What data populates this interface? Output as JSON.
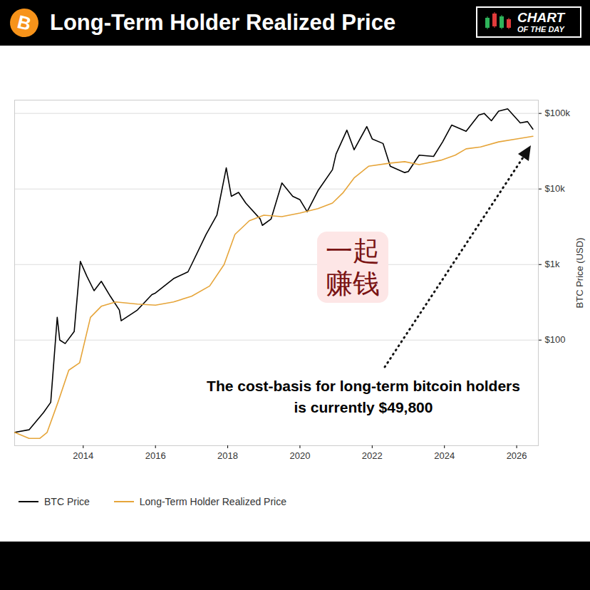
{
  "chart_data": {
    "type": "line",
    "title": "Long-Term Holder Realized Price",
    "badge": "CHART OF THE DAY",
    "icon_label": "B",
    "annotations": [
      "The cost-basis for long-term bitcoin holders is currently $49,800",
      "一起赚钱"
    ],
    "y_label": "BTC Price (USD)",
    "log": "y",
    "grid": true,
    "legend": "bottom",
    "xlim": [
      2012.1,
      2026.6
    ],
    "xticks": [
      2014,
      2016,
      2018,
      2020,
      2022,
      2024,
      2026
    ],
    "ylim": [
      4,
      150000
    ],
    "yticks": [
      {
        "value": 100,
        "label": "$100"
      },
      {
        "value": 1000,
        "label": "$1k"
      },
      {
        "value": 10000,
        "label": "$10k"
      },
      {
        "value": 100000,
        "label": "$100k"
      }
    ],
    "series": [
      {
        "name": "BTC Price",
        "color": "#000000",
        "x": [
          2012.1,
          2012.5,
          2012.9,
          2013.1,
          2013.28,
          2013.35,
          2013.5,
          2013.75,
          2013.92,
          2014.1,
          2014.3,
          2014.5,
          2014.75,
          2015.0,
          2015.05,
          2015.5,
          2015.9,
          2016.0,
          2016.5,
          2016.9,
          2017.0,
          2017.4,
          2017.7,
          2017.96,
          2018.1,
          2018.3,
          2018.5,
          2018.9,
          2018.96,
          2019.2,
          2019.5,
          2019.8,
          2020.0,
          2020.2,
          2020.5,
          2020.9,
          2021.0,
          2021.3,
          2021.5,
          2021.85,
          2022.0,
          2022.3,
          2022.5,
          2022.9,
          2023.0,
          2023.3,
          2023.7,
          2023.95,
          2024.2,
          2024.6,
          2024.95,
          2025.1,
          2025.3,
          2025.5,
          2025.75,
          2025.95,
          2026.1,
          2026.3,
          2026.45
        ],
        "values": [
          6,
          6.5,
          11,
          15,
          200,
          100,
          90,
          130,
          1100,
          700,
          450,
          600,
          380,
          250,
          180,
          250,
          400,
          420,
          650,
          800,
          1000,
          2500,
          4500,
          19000,
          8000,
          9000,
          6500,
          4000,
          3300,
          4000,
          12000,
          8000,
          7200,
          5000,
          9500,
          18000,
          29000,
          60000,
          33000,
          67000,
          46000,
          40000,
          20000,
          16500,
          17000,
          28000,
          27000,
          42000,
          70000,
          58000,
          95000,
          100000,
          80000,
          107000,
          115000,
          90000,
          75000,
          78000,
          62000
        ]
      },
      {
        "name": "Long-Term Holder Realized Price",
        "color": "#e6a53a",
        "x": [
          2012.1,
          2012.5,
          2012.8,
          2013.0,
          2013.3,
          2013.6,
          2013.9,
          2014.2,
          2014.5,
          2014.9,
          2015.5,
          2016.0,
          2016.5,
          2017.0,
          2017.5,
          2017.9,
          2018.2,
          2018.6,
          2019.0,
          2019.5,
          2020.0,
          2020.5,
          2020.9,
          2021.2,
          2021.5,
          2021.9,
          2022.5,
          2022.9,
          2023.3,
          2023.9,
          2024.3,
          2024.6,
          2025.0,
          2025.5,
          2026.0,
          2026.45
        ],
        "values": [
          6,
          5,
          5,
          6,
          15,
          40,
          50,
          200,
          280,
          320,
          300,
          290,
          320,
          380,
          520,
          1000,
          2500,
          3800,
          4500,
          4300,
          4800,
          5500,
          6500,
          9000,
          14000,
          20000,
          22000,
          23000,
          21000,
          24000,
          28000,
          34000,
          36000,
          42000,
          46000,
          49800
        ]
      }
    ]
  }
}
